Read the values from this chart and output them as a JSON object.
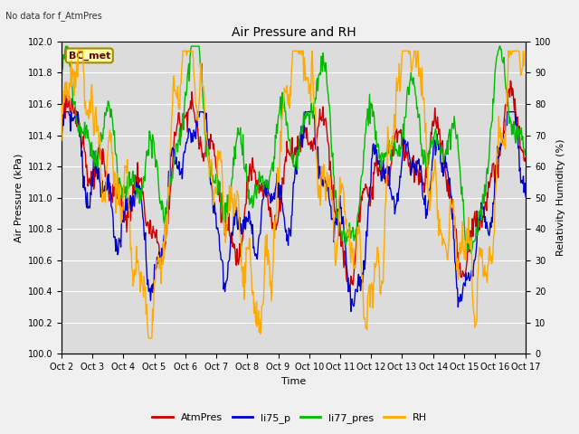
{
  "title": "Air Pressure and RH",
  "top_left_text": "No data for f_AtmPres",
  "box_label": "BC_met",
  "xlabel": "Time",
  "ylabel_left": "Air Pressure (kPa)",
  "ylabel_right": "Relativity Humidity (%)",
  "ylim_left": [
    100.0,
    102.0
  ],
  "ylim_right": [
    0,
    100
  ],
  "yticks_left": [
    100.0,
    100.2,
    100.4,
    100.6,
    100.8,
    101.0,
    101.2,
    101.4,
    101.6,
    101.8,
    102.0
  ],
  "yticks_right": [
    0,
    10,
    20,
    30,
    40,
    50,
    60,
    70,
    80,
    90,
    100
  ],
  "xtick_labels": [
    "Oct 2",
    "Oct 3",
    "Oct 4",
    "Oct 5",
    "Oct 6",
    "Oct 7",
    "Oct 8",
    "Oct 9",
    "Oct 10",
    "Oct 11",
    "Oct 12",
    "Oct 13",
    "Oct 14",
    "Oct 15",
    "Oct 16",
    "Oct 17"
  ],
  "colors": {
    "AtmPres": "#cc0000",
    "li75_p": "#0000cc",
    "li77_pres": "#00bb00",
    "RH": "#ffaa00"
  },
  "legend_labels": [
    "AtmPres",
    "li75_p",
    "li77_pres",
    "RH"
  ],
  "plot_bg": "#dcdcdc",
  "fig_bg": "#f0f0f0",
  "grid_color": "#ffffff",
  "line_width": 1.0,
  "title_fontsize": 10,
  "label_fontsize": 8,
  "tick_fontsize": 7,
  "legend_fontsize": 8,
  "n_days": 15,
  "n_per_day": 48
}
